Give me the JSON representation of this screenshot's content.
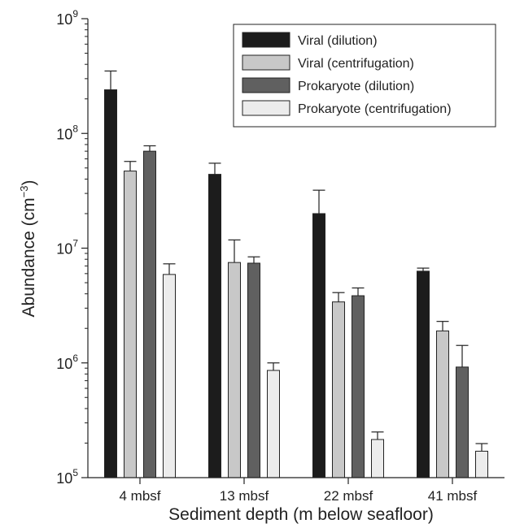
{
  "chart_data": {
    "type": "bar",
    "yscale": "log",
    "ylim": [
      100000,
      1000000000
    ],
    "ylabel": "Abundance (cm",
    "ylabel_sup": "−3",
    "ylabel_close": ")",
    "xlabel": "Sediment depth (m below seafloor)",
    "categories": [
      "4 mbsf",
      "13 mbsf",
      "22 mbsf",
      "41 mbsf"
    ],
    "y_ticks": [
      {
        "value": 100000,
        "base": "10",
        "exp": "5"
      },
      {
        "value": 1000000,
        "base": "10",
        "exp": "6"
      },
      {
        "value": 10000000,
        "base": "10",
        "exp": "7"
      },
      {
        "value": 100000000,
        "base": "10",
        "exp": "8"
      },
      {
        "value": 1000000000,
        "base": "10",
        "exp": "9"
      }
    ],
    "legend_position": "top-right",
    "series": [
      {
        "name": "Viral (dilution)",
        "color": "#1c1c1c",
        "values": [
          240000000,
          44000000,
          20000000,
          6300000
        ],
        "err_upper": [
          350000000,
          55000000,
          32000000,
          6700000
        ]
      },
      {
        "name": "Viral (centrifugation)",
        "color": "#c8c8c8",
        "values": [
          47000000,
          7500000,
          3400000,
          1900000
        ],
        "err_upper": [
          57000000,
          11800000,
          4100000,
          2300000
        ]
      },
      {
        "name": "Prokaryote (dilution)",
        "color": "#606060",
        "values": [
          70000000,
          7400000,
          3850000,
          920000
        ],
        "err_upper": [
          78000000,
          8400000,
          4500000,
          1420000
        ]
      },
      {
        "name": "Prokaryote (centrifugation)",
        "color": "#ececec",
        "values": [
          5900000,
          860000,
          215000,
          170000
        ],
        "err_upper": [
          7300000,
          1000000,
          250000,
          198000
        ]
      }
    ]
  }
}
